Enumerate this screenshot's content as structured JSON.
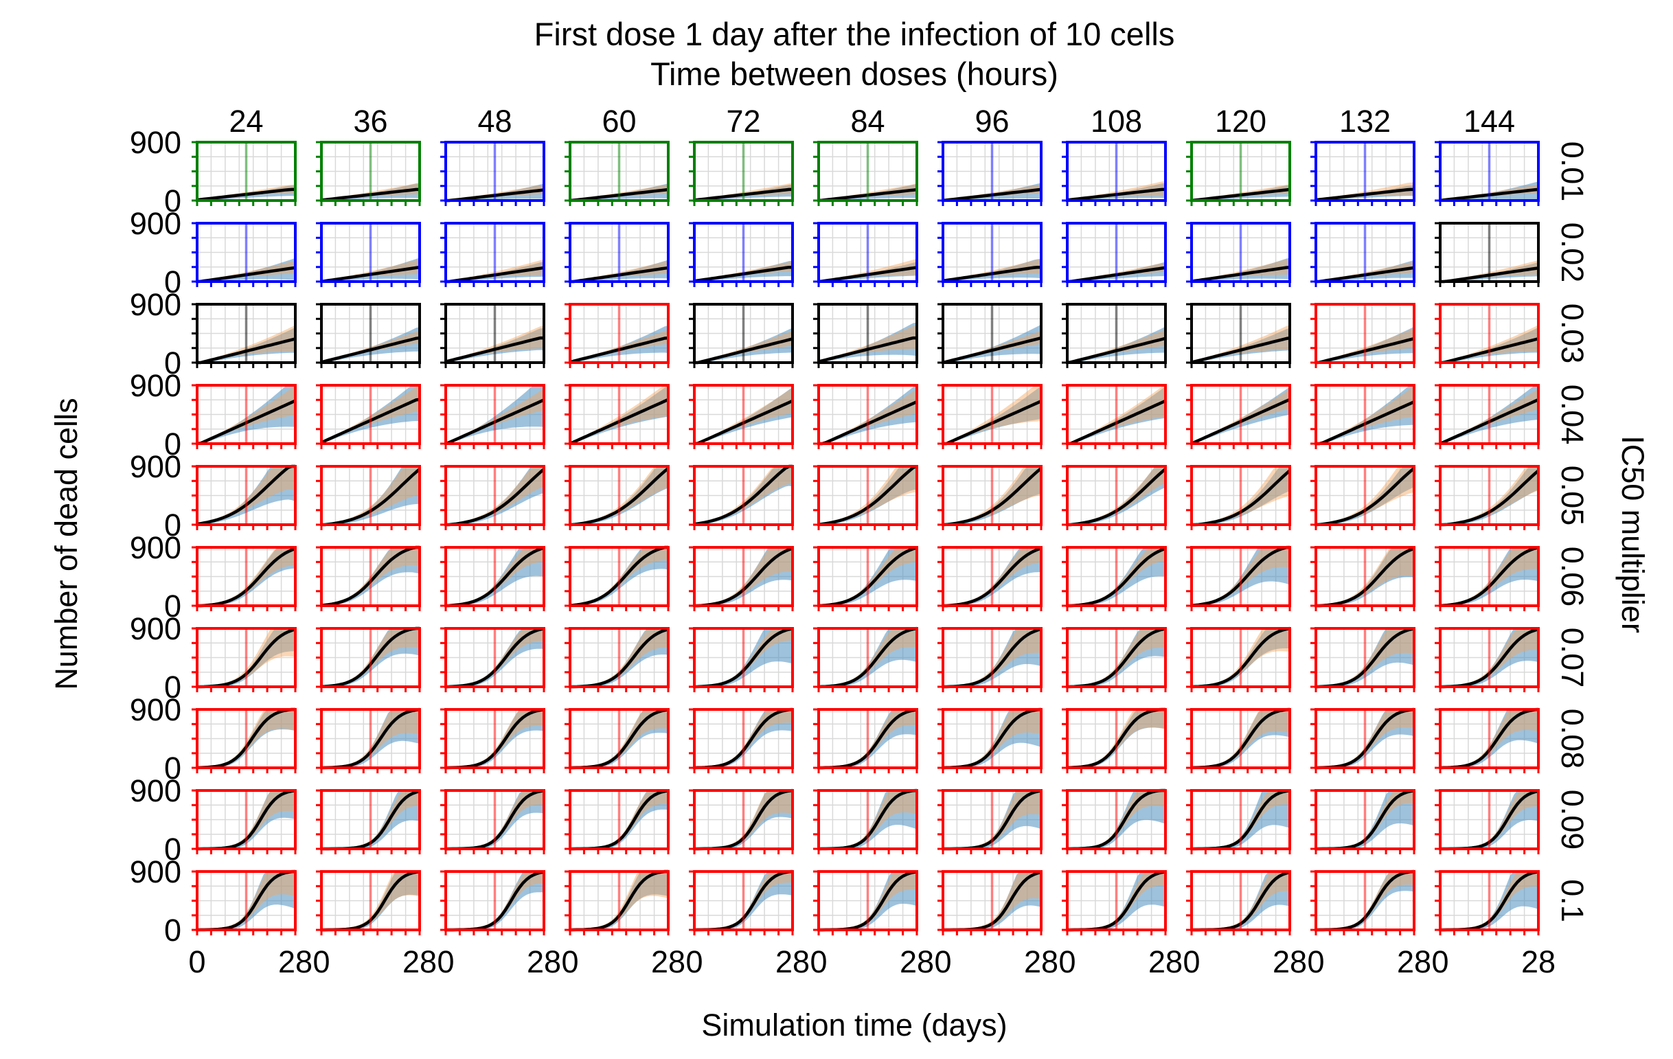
{
  "chart_data": {
    "type": "line",
    "title": "First dose 1 day after the infection of 10 cells",
    "subtitle": "Time between doses (hours)",
    "xlabel": "Simulation time (days)",
    "ylabel": "Number of dead cells",
    "right_label": "IC50 multiplier",
    "columns": [
      "24",
      "36",
      "48",
      "60",
      "72",
      "84",
      "96",
      "108",
      "120",
      "132",
      "144"
    ],
    "rows": [
      "0.01",
      "0.02",
      "0.03",
      "0.04",
      "0.05",
      "0.06",
      "0.07",
      "0.08",
      "0.09",
      "0.1"
    ],
    "xlim": [
      0,
      28
    ],
    "ylim": [
      0,
      900
    ],
    "x_ticks": [
      "0",
      "28"
    ],
    "y_ticks": [
      "0",
      "900"
    ],
    "first_dose_day": 14,
    "grid": true,
    "series_legend": [
      "mean (black line)",
      "range A (blue band)",
      "range B (orange band)"
    ],
    "colors": {
      "green": "#008000",
      "blue": "#0000ff",
      "black": "#000000",
      "red": "#ff0000",
      "band_blue": "#4f8fc0",
      "band_orange": "#f3a35b",
      "line": "#000000"
    },
    "frame_colors": [
      [
        "green",
        "green",
        "blue",
        "green",
        "green",
        "green",
        "blue",
        "blue",
        "green",
        "blue",
        "blue"
      ],
      [
        "blue",
        "blue",
        "blue",
        "blue",
        "blue",
        "blue",
        "blue",
        "blue",
        "blue",
        "blue",
        "black"
      ],
      [
        "black",
        "black",
        "black",
        "red",
        "black",
        "black",
        "black",
        "black",
        "black",
        "red",
        "red"
      ],
      [
        "red",
        "red",
        "red",
        "red",
        "red",
        "red",
        "red",
        "red",
        "red",
        "red",
        "red"
      ],
      [
        "red",
        "red",
        "red",
        "red",
        "red",
        "red",
        "red",
        "red",
        "red",
        "red",
        "red"
      ],
      [
        "red",
        "red",
        "red",
        "red",
        "red",
        "red",
        "red",
        "red",
        "red",
        "red",
        "red"
      ],
      [
        "red",
        "red",
        "red",
        "red",
        "red",
        "red",
        "red",
        "red",
        "red",
        "red",
        "red"
      ],
      [
        "red",
        "red",
        "red",
        "red",
        "red",
        "red",
        "red",
        "red",
        "red",
        "red",
        "red"
      ],
      [
        "red",
        "red",
        "red",
        "red",
        "red",
        "red",
        "red",
        "red",
        "red",
        "red",
        "red"
      ],
      [
        "red",
        "red",
        "red",
        "red",
        "red",
        "red",
        "red",
        "red",
        "red",
        "red",
        "red"
      ]
    ],
    "row_curve_params": [
      {
        "type": "linear",
        "end": 170
      },
      {
        "type": "linear",
        "end": 220
      },
      {
        "type": "linear",
        "end": 380
      },
      {
        "type": "linear",
        "end": 680
      },
      {
        "type": "sigmoid",
        "mid": 22,
        "k": 0.16
      },
      {
        "type": "sigmoid",
        "mid": 17,
        "k": 0.25
      },
      {
        "type": "sigmoid",
        "mid": 17,
        "k": 0.3
      },
      {
        "type": "sigmoid",
        "mid": 17,
        "k": 0.35
      },
      {
        "type": "sigmoid",
        "mid": 18,
        "k": 0.4
      },
      {
        "type": "sigmoid",
        "mid": 18,
        "k": 0.4
      }
    ]
  }
}
